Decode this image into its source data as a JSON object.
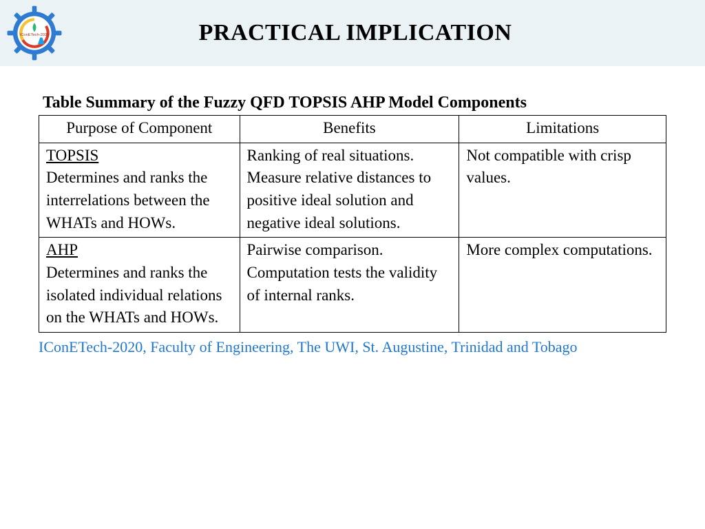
{
  "header": {
    "title": "PRACTICAL IMPLICATION",
    "band_bg": "#eaf2f6"
  },
  "logo": {
    "gear_color": "#2f7bd0",
    "inner_bg": "#ffffff",
    "ring_red": "#d93a2b",
    "ring_yellow": "#f4c430",
    "leaf_green": "#2bb673",
    "accent_blue": "#1ea0e6",
    "label": "IConETech-2020",
    "label_color": "#a03028"
  },
  "table": {
    "caption": "Table Summary of the Fuzzy QFD TOPSIS AHP Model Components",
    "columns": [
      "Purpose of Component",
      "Benefits",
      "Limitations"
    ],
    "col_widths_pct": [
      32,
      35,
      33
    ],
    "rows": [
      {
        "heading": "TOPSIS",
        "purpose": "Determines and ranks the interrelations between the WHATs and HOWs.",
        "benefits": "Ranking of real situations.\nMeasure relative distances to positive ideal solution and negative ideal solutions.",
        "limitations": "Not compatible with crisp values."
      },
      {
        "heading": "AHP",
        "purpose": "Determines and ranks the isolated individual relations on the WHATs and HOWs.",
        "benefits": "Pairwise comparison. Computation tests the validity of internal ranks.",
        "limitations": "More complex computations."
      }
    ],
    "border_color": "#000000",
    "font_size": 23
  },
  "footer": {
    "text": "IConETech-2020, Faculty of Engineering, The UWI, St. Augustine, Trinidad and Tobago",
    "color": "#1f77d0"
  }
}
